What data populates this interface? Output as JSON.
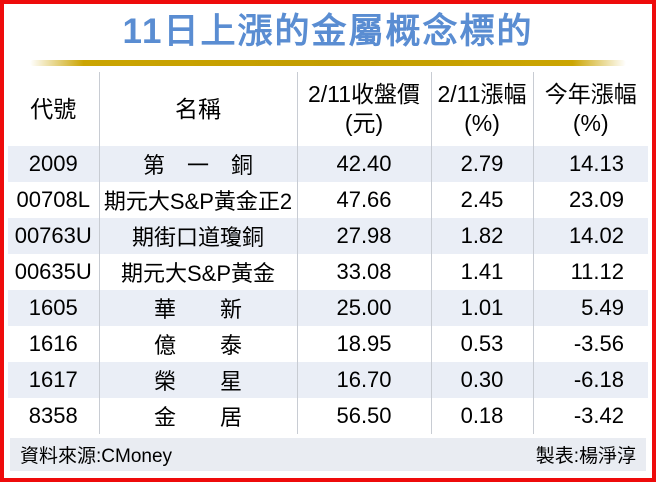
{
  "title": "11日上漲的金屬概念標的",
  "table": {
    "columns": [
      {
        "label": "代號",
        "sub": ""
      },
      {
        "label": "名稱",
        "sub": ""
      },
      {
        "label": "2/11收盤價",
        "sub": "(元)"
      },
      {
        "label": "2/11漲幅",
        "sub": "(%)"
      },
      {
        "label": "今年漲幅",
        "sub": "(%)"
      }
    ],
    "rows": [
      {
        "code": "2009",
        "name": "第　一　銅",
        "close": "42.40",
        "change": "2.79",
        "ytd": "14.13"
      },
      {
        "code": "00708L",
        "name": "期元大S&P黃金正2",
        "close": "47.66",
        "change": "2.45",
        "ytd": "23.09"
      },
      {
        "code": "00763U",
        "name": "期街口道瓊銅",
        "close": "27.98",
        "change": "1.82",
        "ytd": "14.02"
      },
      {
        "code": "00635U",
        "name": "期元大S&P黃金",
        "close": "33.08",
        "change": "1.41",
        "ytd": "11.12"
      },
      {
        "code": "1605",
        "name": "華　　新",
        "close": "25.00",
        "change": "1.01",
        "ytd": "5.49"
      },
      {
        "code": "1616",
        "name": "億　　泰",
        "close": "18.95",
        "change": "0.53",
        "ytd": "-3.56"
      },
      {
        "code": "1617",
        "name": "榮　　星",
        "close": "16.70",
        "change": "0.30",
        "ytd": "-6.18"
      },
      {
        "code": "8358",
        "name": "金　　居",
        "close": "56.50",
        "change": "0.18",
        "ytd": "-3.42"
      }
    ]
  },
  "footer": {
    "source": "資料來源:CMoney",
    "credit": "製表:楊淨淳"
  },
  "colors": {
    "frame_red": "#ee0b0b",
    "title_blue": "#5a8dd2",
    "gold_line": "#c39d00",
    "row_stripe": "#eaeef6",
    "footer_bg": "#e9ecf2"
  },
  "chart_data": {
    "type": "table",
    "title": "11日上漲的金屬概念標的",
    "columns": [
      "代號",
      "名稱",
      "2/11收盤價(元)",
      "2/11漲幅(%)",
      "今年漲幅(%)"
    ],
    "rows": [
      [
        "2009",
        "第一銅",
        42.4,
        2.79,
        14.13
      ],
      [
        "00708L",
        "期元大S&P黃金正2",
        47.66,
        2.45,
        23.09
      ],
      [
        "00763U",
        "期街口道瓊銅",
        27.98,
        1.82,
        14.02
      ],
      [
        "00635U",
        "期元大S&P黃金",
        33.08,
        1.41,
        11.12
      ],
      [
        "1605",
        "華新",
        25.0,
        1.01,
        5.49
      ],
      [
        "1616",
        "億泰",
        18.95,
        0.53,
        -3.56
      ],
      [
        "1617",
        "榮星",
        16.7,
        0.3,
        -6.18
      ],
      [
        "8358",
        "金居",
        56.5,
        0.18,
        -3.42
      ]
    ],
    "source": "CMoney",
    "credit": "楊淨淳"
  }
}
